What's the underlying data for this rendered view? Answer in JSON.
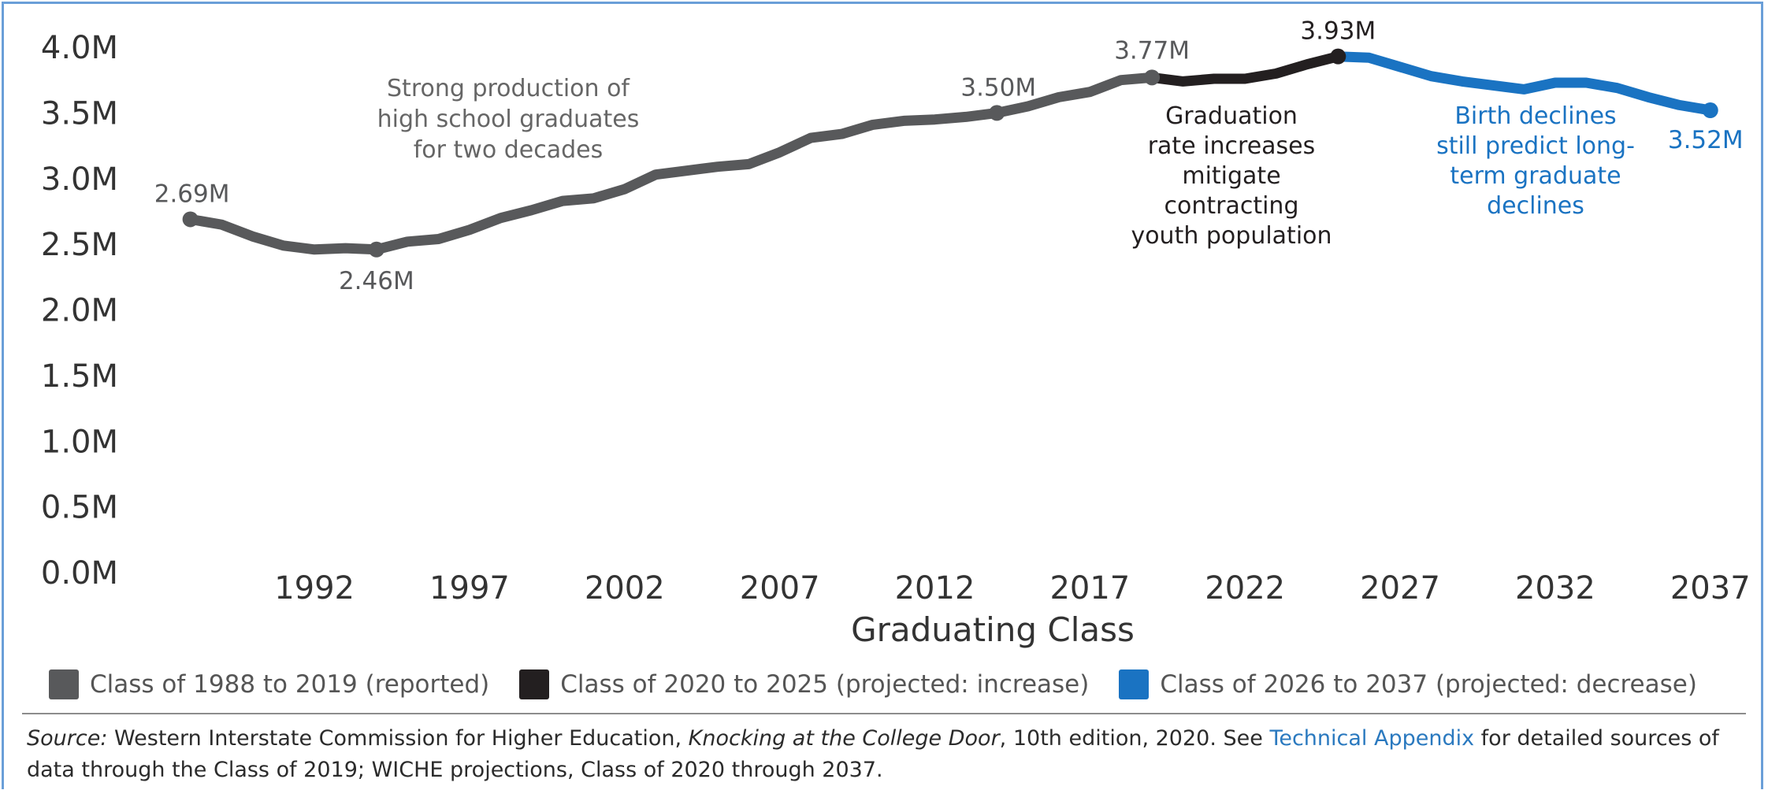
{
  "chart_data": {
    "type": "line",
    "xlabel": "Graduating Class",
    "ylabel": "",
    "y_ticks": [
      "0.0M",
      "0.5M",
      "1.0M",
      "1.5M",
      "2.0M",
      "2.5M",
      "3.0M",
      "3.5M",
      "4.0M"
    ],
    "x_ticks": [
      "1992",
      "1997",
      "2002",
      "2007",
      "2012",
      "2017",
      "2022",
      "2027",
      "2032",
      "2037"
    ],
    "x_tick_values": [
      1992,
      1997,
      2002,
      2007,
      2012,
      2017,
      2022,
      2027,
      2032,
      2037
    ],
    "xlim": [
      1985.8,
      2038.2
    ],
    "ylim": [
      0,
      4.0
    ],
    "grid": false,
    "legend_position": "bottom",
    "series": [
      {
        "name": "Class of 1988 to 2019 (reported)",
        "color": "#58595b",
        "x": [
          1988,
          1989,
          1990,
          1991,
          1992,
          1993,
          1994,
          1995,
          1996,
          1997,
          1998,
          1999,
          2000,
          2001,
          2002,
          2003,
          2004,
          2005,
          2006,
          2007,
          2008,
          2009,
          2010,
          2011,
          2012,
          2013,
          2014,
          2015,
          2016,
          2017,
          2018,
          2019
        ],
        "y": [
          2.69,
          2.65,
          2.56,
          2.49,
          2.46,
          2.47,
          2.46,
          2.52,
          2.54,
          2.61,
          2.7,
          2.76,
          2.83,
          2.85,
          2.92,
          3.03,
          3.06,
          3.09,
          3.11,
          3.2,
          3.31,
          3.34,
          3.41,
          3.44,
          3.45,
          3.47,
          3.5,
          3.55,
          3.62,
          3.66,
          3.75,
          3.77
        ]
      },
      {
        "name": "Class of 2020 to 2025 (projected: increase)",
        "color": "#231f20",
        "x": [
          2019,
          2020,
          2021,
          2022,
          2023,
          2024,
          2025
        ],
        "y": [
          3.77,
          3.74,
          3.76,
          3.76,
          3.8,
          3.87,
          3.93
        ]
      },
      {
        "name": "Class of 2026 to 2037 (projected: decrease)",
        "color": "#1a73c2",
        "x": [
          2025,
          2026,
          2027,
          2028,
          2029,
          2030,
          2031,
          2032,
          2033,
          2034,
          2035,
          2036,
          2037
        ],
        "y": [
          3.93,
          3.92,
          3.85,
          3.78,
          3.74,
          3.71,
          3.68,
          3.73,
          3.73,
          3.69,
          3.62,
          3.56,
          3.52
        ]
      }
    ],
    "point_labels": [
      {
        "text": "2.69M",
        "color": "#58595b"
      },
      {
        "text": "2.46M",
        "color": "#58595b"
      },
      {
        "text": "3.50M",
        "color": "#58595b"
      },
      {
        "text": "3.77M",
        "color": "#58595b"
      },
      {
        "text": "3.93M",
        "color": "#231f20"
      },
      {
        "text": "3.52M",
        "color": "#1a73c2"
      }
    ],
    "annotations": [
      {
        "lines": [
          "Strong production of",
          "high school graduates",
          "for two decades"
        ],
        "color": "#666666"
      },
      {
        "lines": [
          "Graduation",
          "rate increases",
          "mitigate",
          "contracting",
          "youth population"
        ],
        "color": "#231f20"
      },
      {
        "lines": [
          "Birth declines",
          "still predict long-",
          "term graduate",
          "declines"
        ],
        "color": "#1a73c2"
      }
    ]
  },
  "legend": [
    {
      "label": "Class of 1988 to 2019 (reported)",
      "color": "#58595b"
    },
    {
      "label": "Class of 2020 to 2025 (projected: increase)",
      "color": "#231f20"
    },
    {
      "label": "Class of 2026 to 2037 (projected: decrease)",
      "color": "#1a73c2"
    }
  ],
  "source": {
    "label": "Source:",
    "text_1": " Western Interstate Commission for Higher Education, ",
    "title": "Knocking at the College Door",
    "text_2": ", 10th edition, 2020. See ",
    "link": "Technical Appendix",
    "text_3": " for detailed sources of data through the Class of 2019; WICHE projections, Class of 2020 through 2037."
  }
}
